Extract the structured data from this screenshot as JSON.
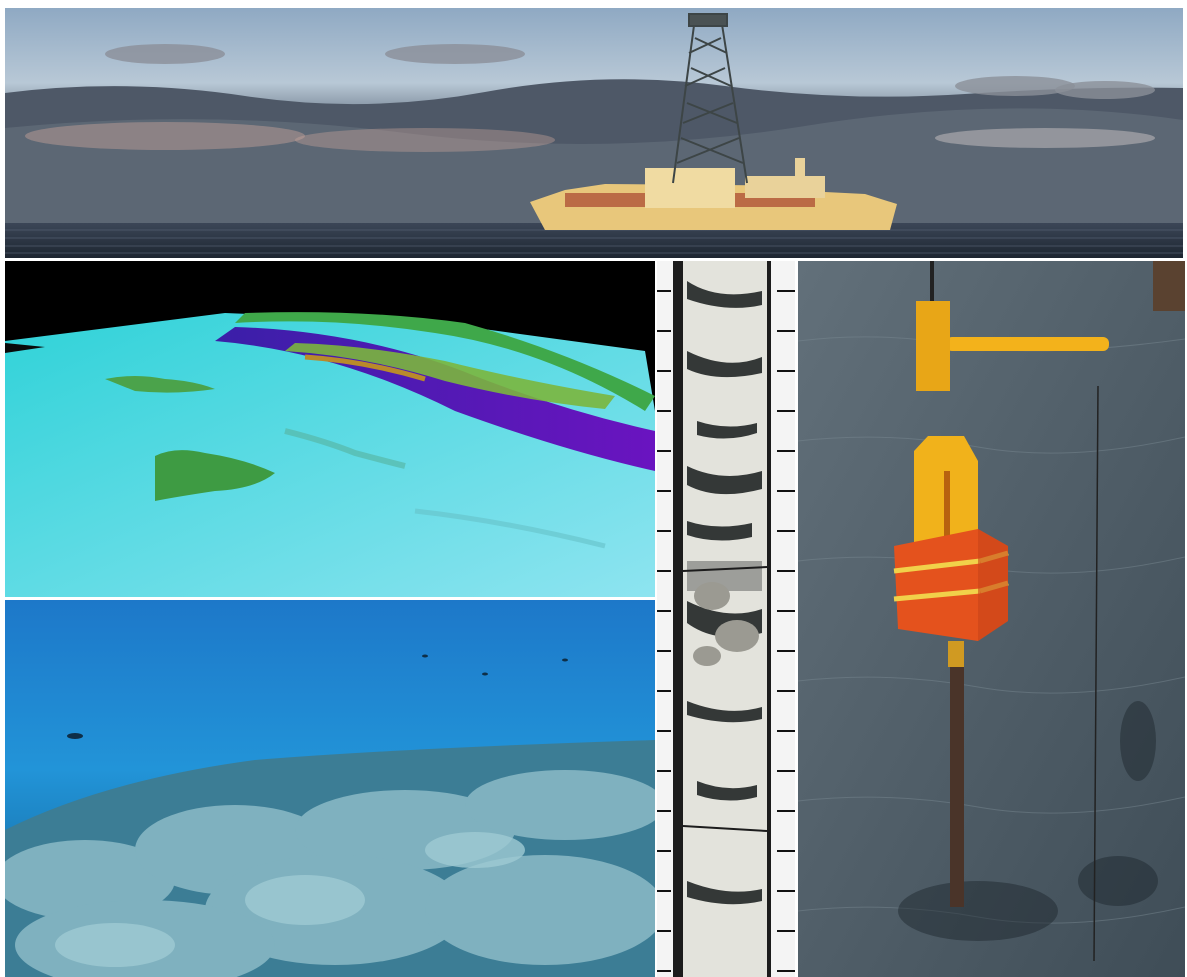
{
  "collage": {
    "panels": [
      {
        "id": "ship",
        "subject": "drilling-ship-at-sea"
      },
      {
        "id": "bathymetry",
        "subject": "3d-bathymetric-seafloor-map"
      },
      {
        "id": "coral",
        "subject": "coral-reef-underwater"
      },
      {
        "id": "core",
        "subject": "sediment-core-with-scale"
      },
      {
        "id": "corer",
        "subject": "coring-device-over-water"
      }
    ],
    "colors": {
      "sky_top": "#9fb4c8",
      "cloud_dark": "#4d5866",
      "ocean": "#27313e",
      "ship_hull": "#e9c77a",
      "bathy_shallow": "#35d7dc",
      "bathy_deep": "#5a14b8",
      "bathy_ridge": "#4f9a36",
      "reef_water": "#1f8fd6",
      "coral": "#7aaab7",
      "core_light": "#e6e6e0",
      "core_dark": "#2e3231",
      "sea_gray": "#56656f",
      "device_yellow": "#f1b21b",
      "weight_orange": "#e6551e"
    }
  }
}
